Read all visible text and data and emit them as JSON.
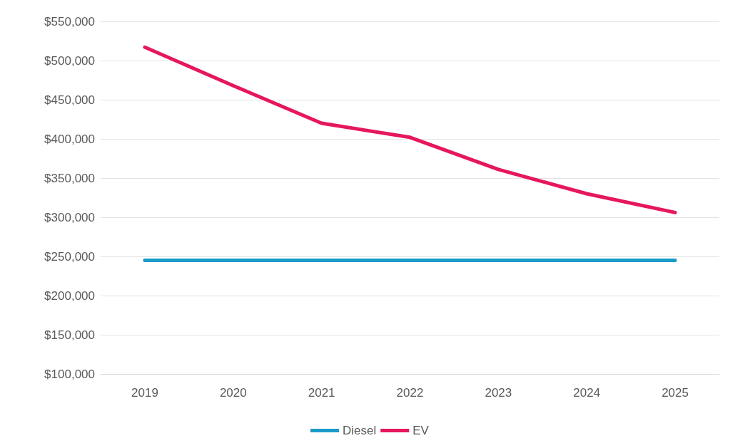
{
  "chart_data": {
    "type": "line",
    "categories": [
      "2019",
      "2020",
      "2021",
      "2022",
      "2023",
      "2024",
      "2025"
    ],
    "series": [
      {
        "name": "Diesel",
        "color": "#1a9bc9",
        "values": [
          245000,
          245000,
          245000,
          245000,
          245000,
          245000,
          245000
        ]
      },
      {
        "name": "EV",
        "color": "#e6175c",
        "values": [
          517000,
          468000,
          420000,
          402000,
          361000,
          330000,
          306000
        ]
      }
    ],
    "ylim": [
      100000,
      550000
    ],
    "yticks": [
      {
        "value": 100000,
        "label": "$100,000"
      },
      {
        "value": 150000,
        "label": "$150,000"
      },
      {
        "value": 200000,
        "label": "$200,000"
      },
      {
        "value": 250000,
        "label": "$250,000"
      },
      {
        "value": 300000,
        "label": "$300,000"
      },
      {
        "value": 350000,
        "label": "$350,000"
      },
      {
        "value": 400000,
        "label": "$400,000"
      },
      {
        "value": 450000,
        "label": "$450,000"
      },
      {
        "value": 500000,
        "label": "$500,000"
      },
      {
        "value": 550000,
        "label": "$550,000"
      }
    ],
    "grid": "y",
    "legend": "bottom",
    "marker": "none",
    "line_style": "solid"
  }
}
